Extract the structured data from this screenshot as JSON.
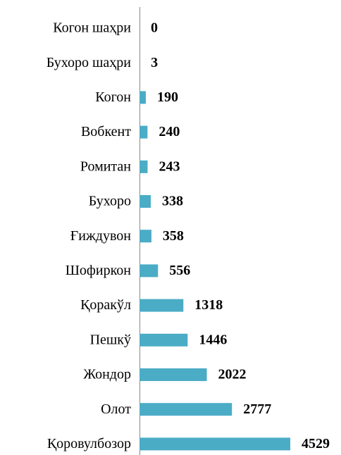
{
  "chart_data": {
    "type": "bar",
    "orientation": "horizontal",
    "categories": [
      "Когон шаҳри",
      "Бухоро шаҳри",
      "Когон",
      "Вобкент",
      "Ромитан",
      "Бухоро",
      "Ғиждувон",
      "Шофиркон",
      "Қоракўл",
      "Пешкў",
      "Жондор",
      "Олот",
      "Қоровулбозор"
    ],
    "values": [
      0,
      3,
      190,
      240,
      243,
      338,
      358,
      556,
      1318,
      1446,
      2022,
      2777,
      4529
    ],
    "color": "#4bacc6"
  }
}
